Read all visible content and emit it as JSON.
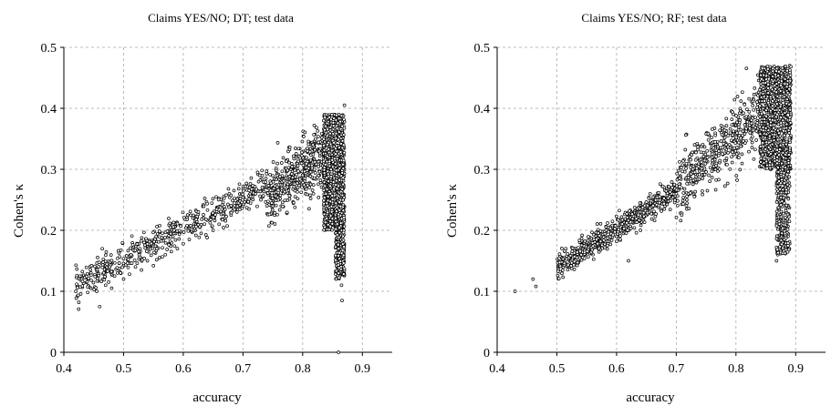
{
  "chart_data": [
    {
      "type": "scatter",
      "title": "Claims YES/NO; DT; test data",
      "xlabel": "accuracy",
      "ylabel": "Cohen's κ",
      "xlim": [
        0.4,
        0.95
      ],
      "ylim": [
        0,
        0.5
      ],
      "xticks": [
        "0.4",
        "0.5",
        "0.6",
        "0.7",
        "0.8",
        "0.9"
      ],
      "yticks": [
        "0",
        "0.1",
        "0.2",
        "0.3",
        "0.4",
        "0.5"
      ],
      "grid": true,
      "legend": "none",
      "marker_color": "#000000",
      "series": [
        {
          "points": [
            [
              0.42,
              0.1
            ],
            [
              0.425,
              0.082
            ],
            [
              0.44,
              0.098
            ],
            [
              0.445,
              0.105
            ],
            [
              0.455,
              0.1
            ],
            [
              0.46,
              0.075
            ],
            [
              0.465,
              0.12
            ],
            [
              0.47,
              0.11
            ],
            [
              0.475,
              0.115
            ],
            [
              0.48,
              0.105
            ],
            [
              0.485,
              0.125
            ],
            [
              0.49,
              0.13
            ],
            [
              0.5,
              0.12
            ],
            [
              0.51,
              0.128
            ],
            [
              0.52,
              0.14
            ],
            [
              0.53,
              0.135
            ],
            [
              0.54,
              0.15
            ],
            [
              0.55,
              0.142
            ],
            [
              0.56,
              0.155
            ],
            [
              0.57,
              0.16
            ],
            [
              0.58,
              0.165
            ],
            [
              0.59,
              0.17
            ],
            [
              0.6,
              0.178
            ],
            [
              0.61,
              0.185
            ],
            [
              0.62,
              0.2
            ],
            [
              0.63,
              0.195
            ],
            [
              0.64,
              0.188
            ],
            [
              0.65,
              0.2
            ],
            [
              0.66,
              0.21
            ],
            [
              0.67,
              0.22
            ],
            [
              0.68,
              0.225
            ],
            [
              0.69,
              0.23
            ],
            [
              0.7,
              0.24
            ],
            [
              0.71,
              0.235
            ],
            [
              0.72,
              0.26
            ],
            [
              0.73,
              0.25
            ],
            [
              0.74,
              0.27
            ],
            [
              0.75,
              0.28
            ],
            [
              0.76,
              0.29
            ],
            [
              0.77,
              0.285
            ],
            [
              0.78,
              0.3
            ],
            [
              0.79,
              0.31
            ],
            [
              0.8,
              0.32
            ],
            [
              0.81,
              0.3
            ],
            [
              0.82,
              0.33
            ],
            [
              0.83,
              0.31
            ],
            [
              0.84,
              0.34
            ],
            [
              0.85,
              0.33
            ],
            [
              0.86,
              0.36
            ],
            [
              0.865,
              0.38
            ],
            [
              0.87,
              0.405
            ],
            [
              0.862,
              0.28
            ],
            [
              0.862,
              0.22
            ],
            [
              0.863,
              0.17
            ],
            [
              0.865,
              0.11
            ],
            [
              0.866,
              0.085
            ],
            [
              0.86,
              0.0
            ]
          ]
        }
      ]
    },
    {
      "type": "scatter",
      "title": "Claims YES/NO; RF; test data",
      "xlabel": "accuracy",
      "ylabel": "Cohen's κ",
      "xlim": [
        0.4,
        0.95
      ],
      "ylim": [
        0,
        0.5
      ],
      "xticks": [
        "0.4",
        "0.5",
        "0.6",
        "0.7",
        "0.8",
        "0.9"
      ],
      "yticks": [
        "0",
        "0.1",
        "0.2",
        "0.3",
        "0.4",
        "0.5"
      ],
      "grid": true,
      "legend": "none",
      "marker_color": "#000000",
      "series": [
        {
          "points": [
            [
              0.43,
              0.1
            ],
            [
              0.46,
              0.12
            ],
            [
              0.465,
              0.108
            ],
            [
              0.51,
              0.143
            ],
            [
              0.52,
              0.14
            ],
            [
              0.53,
              0.16
            ],
            [
              0.54,
              0.168
            ],
            [
              0.55,
              0.17
            ],
            [
              0.56,
              0.18
            ],
            [
              0.57,
              0.175
            ],
            [
              0.58,
              0.19
            ],
            [
              0.59,
              0.2
            ],
            [
              0.6,
              0.205
            ],
            [
              0.61,
              0.21
            ],
            [
              0.62,
              0.225
            ],
            [
              0.63,
              0.23
            ],
            [
              0.64,
              0.24
            ],
            [
              0.65,
              0.245
            ],
            [
              0.66,
              0.25
            ],
            [
              0.67,
              0.26
            ],
            [
              0.68,
              0.27
            ],
            [
              0.69,
              0.265
            ],
            [
              0.7,
              0.265
            ],
            [
              0.72,
              0.28
            ],
            [
              0.74,
              0.3
            ],
            [
              0.76,
              0.32
            ],
            [
              0.78,
              0.34
            ],
            [
              0.8,
              0.36
            ],
            [
              0.82,
              0.38
            ],
            [
              0.84,
              0.4
            ],
            [
              0.85,
              0.41
            ],
            [
              0.86,
              0.43
            ],
            [
              0.87,
              0.45
            ],
            [
              0.88,
              0.46
            ],
            [
              0.89,
              0.47
            ],
            [
              0.88,
              0.25
            ],
            [
              0.875,
              0.2
            ],
            [
              0.87,
              0.16
            ],
            [
              0.868,
              0.15
            ],
            [
              0.62,
              0.15
            ],
            [
              0.64,
              0.2
            ]
          ]
        }
      ]
    }
  ]
}
